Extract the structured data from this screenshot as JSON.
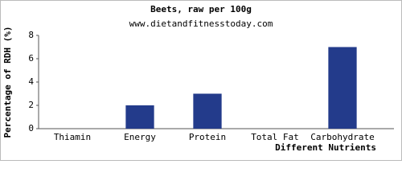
{
  "chart_data": {
    "type": "bar",
    "title": "Beets, raw per 100g",
    "subtitle": "www.dietandfitnesstoday.com",
    "x_label": "Different Nutrients",
    "y_label": "Percentage of RDH (%)",
    "categories": [
      "Thiamin",
      "Energy",
      "Protein",
      "Total Fat",
      "Carbohydrate"
    ],
    "values": [
      0,
      2,
      3,
      0,
      7
    ],
    "color": "#233b8b",
    "ylim": [
      0,
      8
    ],
    "yticks": [
      0,
      2,
      4,
      6,
      8
    ],
    "grid": false
  }
}
